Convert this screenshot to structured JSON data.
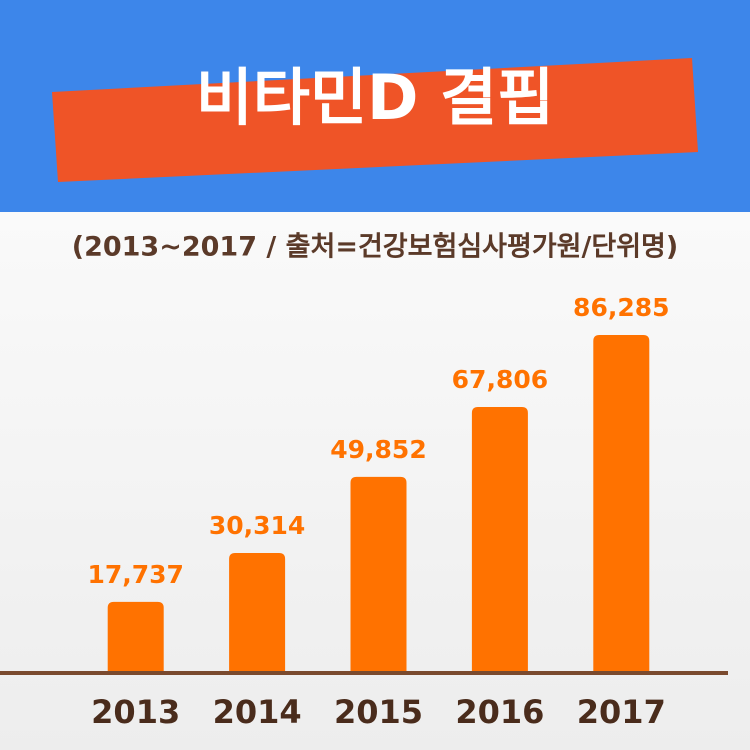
{
  "chart_data": {
    "type": "bar",
    "title": "비타민D 결핍",
    "subtitle": "(2013~2017 / 출처=건강보험심사평가원/단위명)",
    "categories": [
      "2013",
      "2014",
      "2015",
      "2016",
      "2017"
    ],
    "values": [
      17737,
      30314,
      49852,
      67806,
      86285
    ],
    "value_labels": [
      "17,737",
      "30,314",
      "49,852",
      "67,806",
      "86,285"
    ],
    "color": "#ff7200"
  }
}
